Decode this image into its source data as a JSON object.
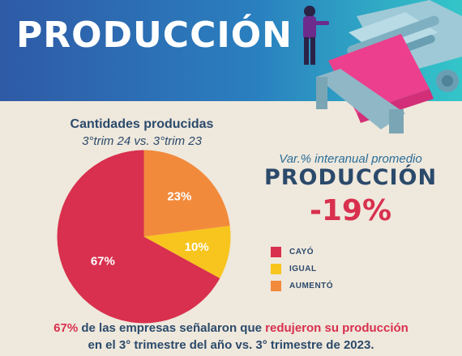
{
  "header": {
    "title": "PRODUCCIÓN"
  },
  "chart_data": {
    "type": "pie",
    "title": "Cantidades producidas",
    "subtitle": "3°trim 24 vs. 3°trim 23",
    "categories": [
      "CAYÓ",
      "IGUAL",
      "AUMENTÓ"
    ],
    "values": [
      67,
      10,
      23
    ],
    "labels": [
      "67%",
      "10%",
      "23%"
    ],
    "colors": [
      "#d8304e",
      "#f7c51e",
      "#f28a3c"
    ],
    "legend_position": "right"
  },
  "summary": {
    "label": "Var.% interanual promedio",
    "title": "PRODUCCIÓN",
    "value": "-19%"
  },
  "footer": {
    "pct": "67%",
    "text1": " de las empresas señalaron que ",
    "highlight": "redujeron su producción",
    "line2": "en el 3° trimestre del año vs. 3° trimestre de 2023."
  }
}
